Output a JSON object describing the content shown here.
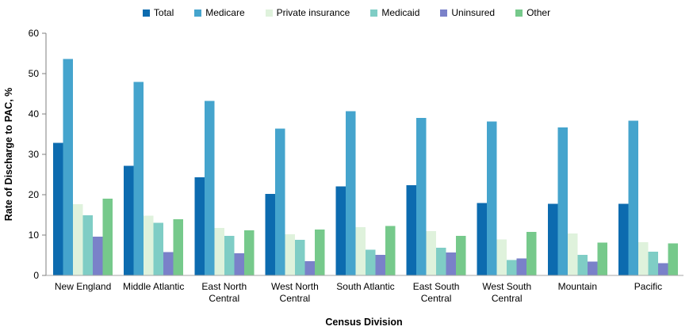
{
  "chart_data": {
    "type": "bar",
    "title": "",
    "xlabel": "Census Division",
    "ylabel": "Rate of Discharge to PAC, %",
    "ylim": [
      0,
      60
    ],
    "ytick_step": 10,
    "ytick_labels": [
      "0",
      "10",
      "20",
      "30",
      "40",
      "50",
      "60"
    ],
    "grid": false,
    "legend_position": "top-center",
    "categories": [
      "New England",
      "Middle Atlantic",
      "East North Central",
      "West North Central",
      "South Atlantic",
      "East South Central",
      "West South Central",
      "Mountain",
      "Pacific"
    ],
    "series": [
      {
        "name": "Total",
        "color": "#0C6BAF",
        "values": [
          32.8,
          27.2,
          24.3,
          20.2,
          22.1,
          22.4,
          17.9,
          17.7,
          17.7
        ]
      },
      {
        "name": "Medicare",
        "color": "#45A4CD",
        "values": [
          53.6,
          47.9,
          43.2,
          36.4,
          40.7,
          39.0,
          38.1,
          36.7,
          38.3
        ]
      },
      {
        "name": "Private insurance",
        "color": "#DFF2DC",
        "values": [
          17.6,
          14.8,
          11.8,
          10.2,
          12.0,
          11.0,
          8.9,
          10.4,
          8.2
        ]
      },
      {
        "name": "Medicaid",
        "color": "#7FCDC5",
        "values": [
          14.9,
          13.0,
          9.8,
          8.8,
          6.4,
          6.9,
          3.8,
          5.1,
          5.9
        ]
      },
      {
        "name": "Uninsured",
        "color": "#7A81C9",
        "values": [
          9.6,
          5.8,
          5.5,
          3.5,
          5.1,
          5.7,
          4.2,
          3.4,
          3.0
        ]
      },
      {
        "name": "Other",
        "color": "#76C98B",
        "values": [
          19.0,
          13.9,
          11.2,
          11.4,
          12.3,
          9.8,
          10.8,
          8.1,
          7.9
        ]
      }
    ],
    "colors": {
      "y_axis_line": "#7F7F7F",
      "x_axis_line": "#A6A6A6",
      "tick_text": "#000000",
      "axis_title_text": "#000000"
    }
  }
}
